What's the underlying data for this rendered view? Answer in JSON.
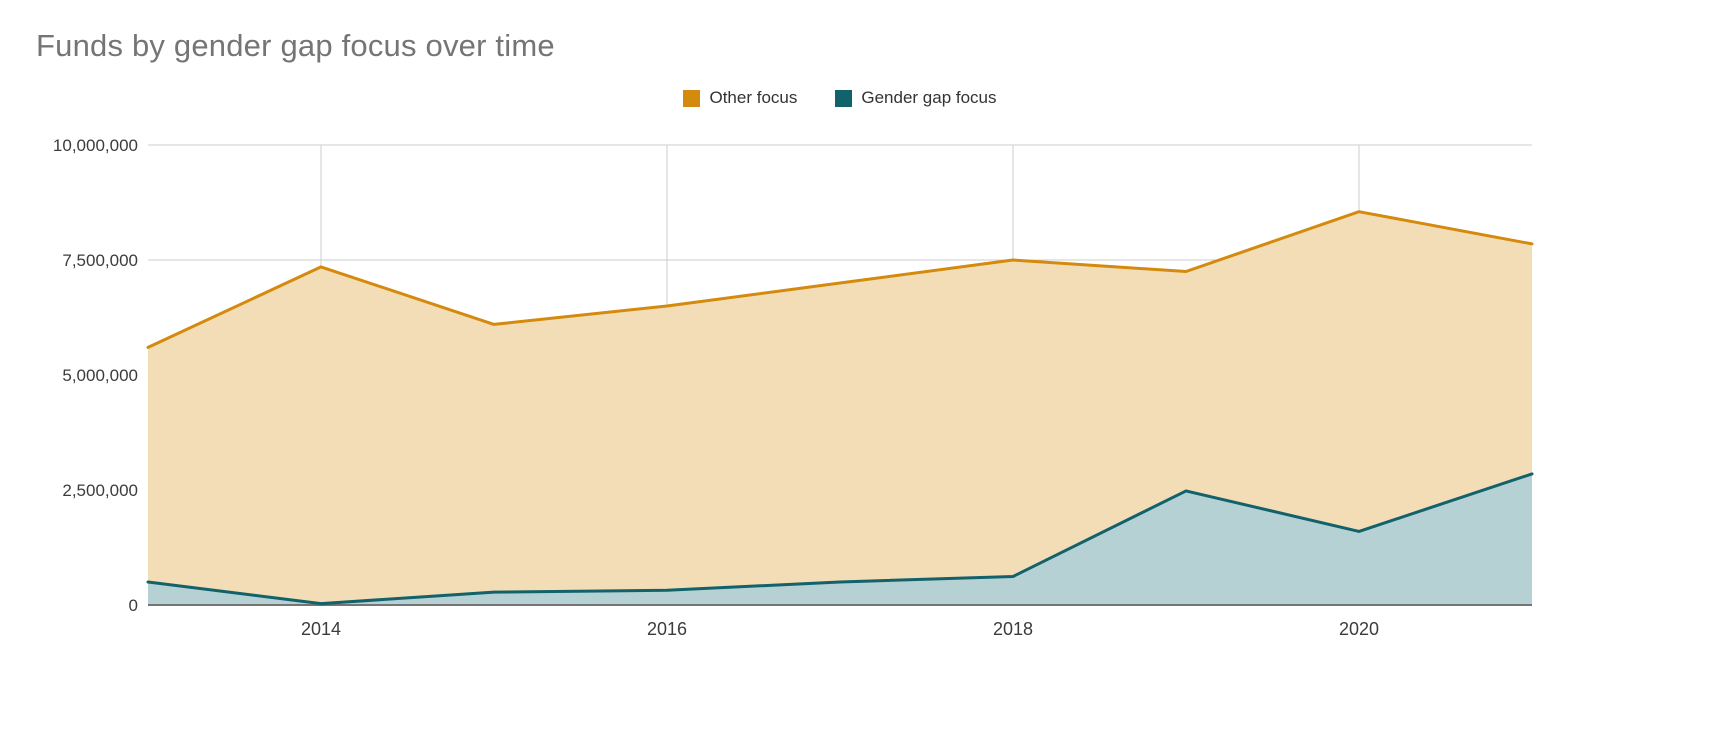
{
  "title": "Funds by gender gap focus over time",
  "legend": {
    "items": [
      {
        "label": "Other focus",
        "color": "#D48A0C"
      },
      {
        "label": "Gender gap focus",
        "color": "#12616B"
      }
    ]
  },
  "chart_data": {
    "type": "area",
    "stacked": true,
    "title": "Funds by gender gap focus over time",
    "xlabel": "",
    "ylabel": "",
    "x": [
      2013,
      2014,
      2015,
      2016,
      2017,
      2018,
      2019,
      2020,
      2021
    ],
    "x_ticks": [
      2014,
      2016,
      2018,
      2020
    ],
    "y_ticks": [
      0,
      2500000,
      5000000,
      7500000,
      10000000
    ],
    "y_tick_labels": [
      "0",
      "2,500,000",
      "5,000,000",
      "7,500,000",
      "10,000,000"
    ],
    "ylim": [
      0,
      10000000
    ],
    "grid": true,
    "legend_position": "top",
    "series": [
      {
        "name": "Gender gap focus",
        "color": "#12616B",
        "fill": "#B6D1D4",
        "values": [
          500000,
          30000,
          280000,
          320000,
          500000,
          620000,
          2480000,
          1600000,
          2850000
        ]
      },
      {
        "name": "Other focus",
        "color": "#D48A0C",
        "fill": "#F2DDB7",
        "values": [
          5100000,
          7320000,
          5820000,
          6180000,
          6500000,
          6880000,
          4770000,
          6950000,
          5000000
        ]
      }
    ],
    "stacked_totals": [
      5600000,
      7350000,
      6100000,
      6500000,
      7000000,
      7500000,
      7250000,
      8550000,
      7850000
    ]
  }
}
